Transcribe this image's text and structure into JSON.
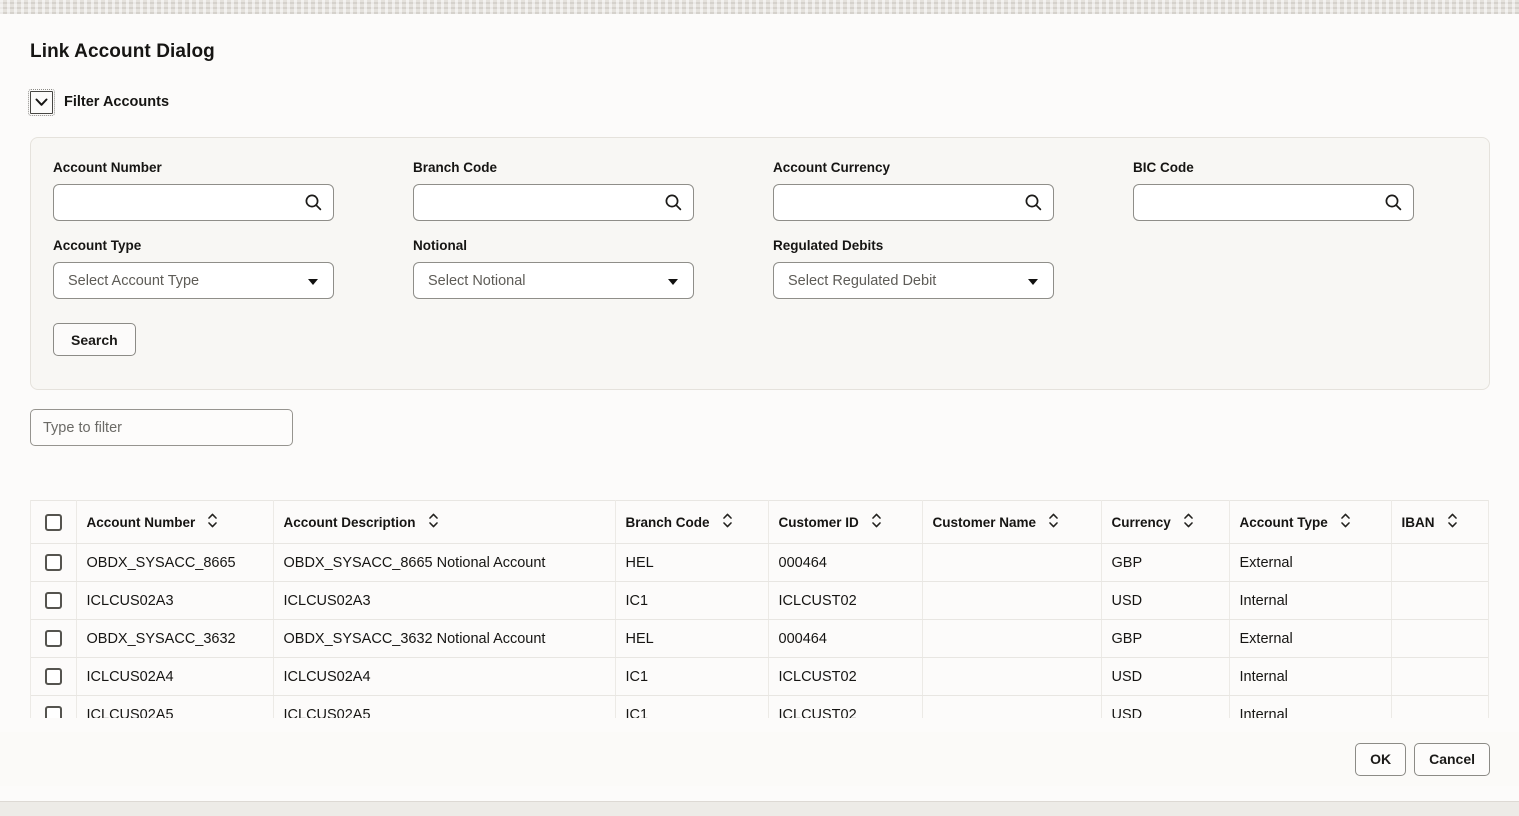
{
  "dialog": {
    "title": "Link Account Dialog",
    "filter_section": {
      "toggle_label": "Filter Accounts",
      "search_fields": [
        {
          "label": "Account Number",
          "value": ""
        },
        {
          "label": "Branch Code",
          "value": ""
        },
        {
          "label": "Account Currency",
          "value": ""
        },
        {
          "label": "BIC Code",
          "value": ""
        }
      ],
      "select_fields": [
        {
          "label": "Account Type",
          "placeholder": "Select Account Type"
        },
        {
          "label": "Notional",
          "placeholder": "Select Notional"
        },
        {
          "label": "Regulated Debits",
          "placeholder": "Select Regulated Debit"
        }
      ],
      "search_button_label": "Search"
    },
    "quick_filter": {
      "placeholder": "Type to filter",
      "value": ""
    },
    "table": {
      "columns": [
        "Account Number",
        "Account Description",
        "Branch Code",
        "Customer ID",
        "Customer Name",
        "Currency",
        "Account Type",
        "IBAN"
      ],
      "rows": [
        [
          "OBDX_SYSACC_8665",
          "OBDX_SYSACC_8665 Notional Account",
          "HEL",
          "000464",
          "",
          "GBP",
          "External",
          ""
        ],
        [
          "ICLCUS02A3",
          "ICLCUS02A3",
          "IC1",
          "ICLCUST02",
          "",
          "USD",
          "Internal",
          ""
        ],
        [
          "OBDX_SYSACC_3632",
          "OBDX_SYSACC_3632 Notional Account",
          "HEL",
          "000464",
          "",
          "GBP",
          "External",
          ""
        ],
        [
          "ICLCUS02A4",
          "ICLCUS02A4",
          "IC1",
          "ICLCUST02",
          "",
          "USD",
          "Internal",
          ""
        ],
        [
          "ICLCUS02A5",
          "ICLCUS02A5",
          "IC1",
          "ICLCUST02",
          "",
          "USD",
          "Internal",
          ""
        ]
      ]
    },
    "footer": {
      "ok_label": "OK",
      "cancel_label": "Cancel"
    }
  }
}
